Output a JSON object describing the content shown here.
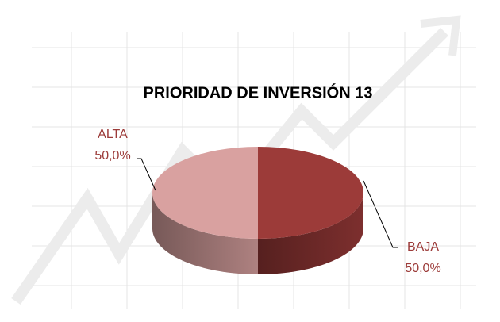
{
  "chart_data": {
    "type": "pie3d",
    "title": "PRIORIDAD DE INVERSIÓN 13",
    "categories": [
      "ALTA",
      "BAJA"
    ],
    "values": [
      50,
      50
    ],
    "value_labels": [
      "50,0%",
      "50,0%"
    ],
    "colors": [
      "#d9a1a0",
      "#9c3b39"
    ],
    "label_color": "#9c3b39"
  }
}
